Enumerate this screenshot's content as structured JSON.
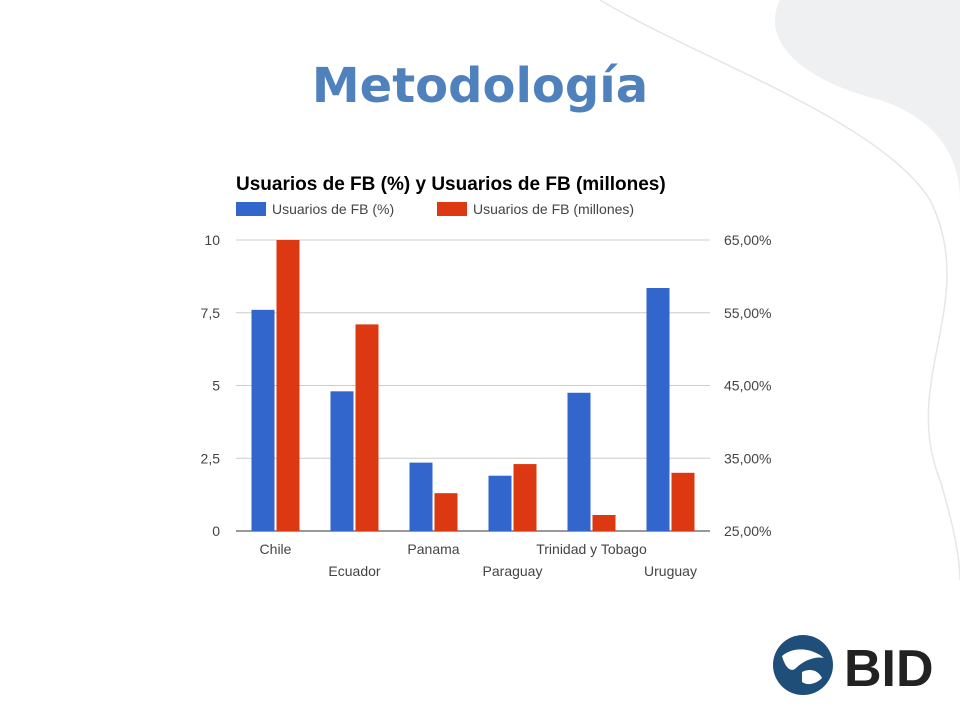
{
  "slide": {
    "title": "Metodología"
  },
  "logo": {
    "text": "BID"
  },
  "colors": {
    "title": "#4f81bd",
    "series_pct": "#3366cc",
    "series_mill": "#dc3912",
    "gridline": "#cccccc",
    "axis_text": "#444444"
  },
  "chart_data": {
    "type": "bar",
    "title": "Usuarios de FB (%) y Usuarios de FB (millones)",
    "legend_position": "top-left",
    "grid": true,
    "categories": [
      "Chile",
      "Ecuador",
      "Panama",
      "Paraguay",
      "Trinidad y Tobago",
      "Uruguay"
    ],
    "series": [
      {
        "name": "Usuarios de FB (%)",
        "axis": "left",
        "values": [
          7.6,
          4.8,
          2.35,
          1.9,
          4.75,
          8.35
        ]
      },
      {
        "name": "Usuarios de FB (millones)",
        "axis": "left",
        "values": [
          10,
          7.1,
          1.3,
          2.3,
          0.55,
          2.0
        ]
      }
    ],
    "y_left": {
      "min": 0,
      "max": 10,
      "ticks": [
        "0",
        "2,5",
        "5",
        "7,5",
        "10"
      ]
    },
    "y_right": {
      "min": 25,
      "max": 65,
      "ticks": [
        "25,00%",
        "35,00%",
        "45,00%",
        "55,00%",
        "65,00%"
      ]
    }
  }
}
